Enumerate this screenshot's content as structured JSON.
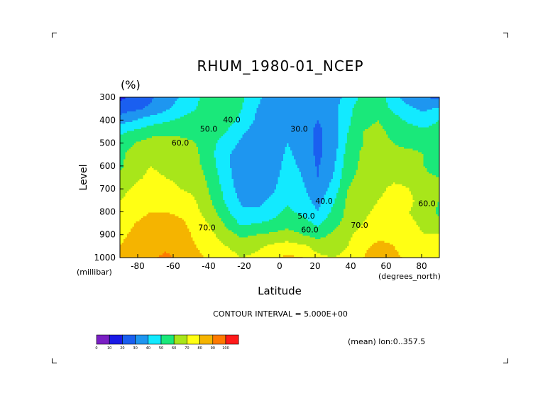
{
  "chart_data": {
    "type": "heatmap",
    "title": "RHUM_1980-01_NCEP",
    "unit_label": "(%)",
    "xlabel": "Latitude",
    "ylabel": "Level",
    "x_unit": "(degrees_north)",
    "y_unit": "(millibar)",
    "xlim": [
      -90,
      90
    ],
    "ylim": [
      1000,
      300
    ],
    "x_ticks": [
      "-80",
      "-60",
      "-40",
      "-20",
      "0",
      "20",
      "40",
      "60",
      "80"
    ],
    "x_tick_values": [
      -80,
      -60,
      -40,
      -20,
      0,
      20,
      40,
      60,
      80
    ],
    "y_ticks": [
      "300",
      "400",
      "500",
      "600",
      "700",
      "800",
      "900",
      "1000"
    ],
    "y_tick_values": [
      300,
      400,
      500,
      600,
      700,
      800,
      900,
      1000
    ],
    "contour_interval_text": "CONTOUR INTERVAL = 5.000E+00",
    "mean_text": "(mean) lon:0..357.5",
    "contour_labels": [
      {
        "text": "40.0",
        "lat": -27,
        "level": 410
      },
      {
        "text": "50.0",
        "lat": -40,
        "level": 450
      },
      {
        "text": "60.0",
        "lat": -56,
        "level": 510
      },
      {
        "text": "30.0",
        "lat": 11,
        "level": 450
      },
      {
        "text": "40.0",
        "lat": 25,
        "level": 765
      },
      {
        "text": "50.0",
        "lat": 15,
        "level": 830
      },
      {
        "text": "60.0",
        "lat": 17,
        "level": 890
      },
      {
        "text": "70.0",
        "lat": -41,
        "level": 880
      },
      {
        "text": "70.0",
        "lat": 45,
        "level": 870
      },
      {
        "text": "60.0",
        "lat": 83,
        "level": 775
      }
    ],
    "colorbar": {
      "labels": [
        "0",
        "10",
        "20",
        "30",
        "40",
        "50",
        "60",
        "70",
        "80",
        "90",
        "100"
      ],
      "colors": [
        "#7a1fc4",
        "#1a1ae6",
        "#1a5ff0",
        "#1e96f0",
        "#12eaff",
        "#1ae87a",
        "#a8e61a",
        "#ffff14",
        "#f5b400",
        "#ff7a00",
        "#ff1a1a"
      ]
    },
    "rows": [
      {
        "level": 300,
        "values": [
          18,
          22,
          28,
          35,
          41,
          48,
          55,
          60,
          52,
          42,
          36,
          38,
          35,
          32,
          34,
          45,
          52,
          55,
          44,
          35,
          30,
          28
        ]
      },
      {
        "level": 350,
        "values": [
          25,
          28,
          32,
          38,
          44,
          50,
          56,
          58,
          50,
          40,
          35,
          37,
          34,
          32,
          36,
          48,
          55,
          55,
          48,
          42,
          38,
          42
        ]
      },
      {
        "level": 400,
        "values": [
          35,
          40,
          45,
          48,
          52,
          55,
          56,
          54,
          48,
          38,
          33,
          36,
          34,
          30,
          35,
          48,
          58,
          60,
          54,
          48,
          45,
          50
        ]
      },
      {
        "level": 450,
        "values": [
          48,
          52,
          56,
          58,
          58,
          58,
          55,
          50,
          42,
          35,
          32,
          38,
          35,
          28,
          34,
          50,
          60,
          62,
          58,
          55,
          52,
          55
        ]
      },
      {
        "level": 500,
        "values": [
          55,
          60,
          64,
          64,
          62,
          60,
          52,
          46,
          38,
          32,
          32,
          40,
          36,
          28,
          34,
          52,
          60,
          62,
          60,
          58,
          58,
          55
        ]
      },
      {
        "level": 550,
        "values": [
          58,
          64,
          68,
          66,
          64,
          62,
          52,
          42,
          34,
          30,
          33,
          42,
          36,
          28,
          35,
          55,
          62,
          62,
          62,
          62,
          60,
          52
        ]
      },
      {
        "level": 600,
        "values": [
          58,
          66,
          70,
          68,
          66,
          63,
          54,
          42,
          34,
          30,
          34,
          44,
          38,
          29,
          38,
          56,
          62,
          63,
          65,
          65,
          60,
          55
        ]
      },
      {
        "level": 650,
        "values": [
          62,
          68,
          72,
          70,
          68,
          66,
          56,
          44,
          34,
          30,
          36,
          45,
          40,
          30,
          40,
          58,
          63,
          66,
          68,
          68,
          62,
          60
        ]
      },
      {
        "level": 700,
        "values": [
          66,
          72,
          74,
          73,
          70,
          68,
          58,
          46,
          35,
          32,
          38,
          46,
          42,
          32,
          44,
          60,
          65,
          68,
          72,
          70,
          64,
          62
        ]
      },
      {
        "level": 750,
        "values": [
          70,
          75,
          78,
          76,
          74,
          70,
          60,
          48,
          38,
          36,
          42,
          48,
          45,
          36,
          48,
          62,
          67,
          70,
          73,
          72,
          66,
          60
        ]
      },
      {
        "level": 800,
        "values": [
          74,
          78,
          80,
          80,
          78,
          72,
          64,
          52,
          42,
          42,
          46,
          52,
          48,
          40,
          52,
          63,
          68,
          72,
          72,
          70,
          66,
          58
        ]
      },
      {
        "level": 850,
        "values": [
          76,
          80,
          82,
          84,
          82,
          76,
          68,
          58,
          48,
          50,
          52,
          56,
          54,
          48,
          56,
          64,
          70,
          74,
          74,
          72,
          68,
          62
        ]
      },
      {
        "level": 900,
        "values": [
          78,
          82,
          84,
          86,
          84,
          78,
          72,
          64,
          58,
          60,
          62,
          64,
          60,
          56,
          62,
          68,
          74,
          78,
          78,
          74,
          70,
          70
        ]
      },
      {
        "level": 950,
        "values": [
          80,
          84,
          86,
          88,
          86,
          80,
          76,
          70,
          66,
          68,
          72,
          74,
          72,
          66,
          66,
          70,
          78,
          82,
          80,
          76,
          72,
          74
        ]
      },
      {
        "level": 1000,
        "values": [
          82,
          86,
          88,
          92,
          88,
          82,
          78,
          74,
          70,
          72,
          78,
          82,
          80,
          72,
          70,
          72,
          80,
          86,
          82,
          78,
          74,
          74
        ]
      }
    ]
  }
}
